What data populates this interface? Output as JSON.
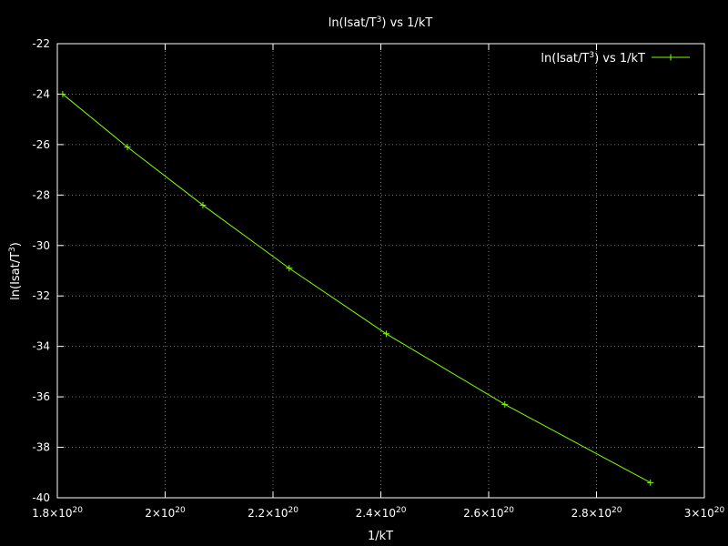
{
  "chart_data": {
    "type": "line",
    "title": {
      "base": "ln(Isat/T",
      "sup": "3",
      "tail": ") vs 1/kT"
    },
    "xlabel": "1/kT",
    "ylabel": {
      "base": "ln(Isat/T",
      "sup": "3",
      "tail": ")"
    },
    "xlim": [
      1.8e+20,
      3e+20
    ],
    "ylim": [
      -40,
      -22
    ],
    "x_ticks": [
      {
        "value": 1.8e+20,
        "mant": "1.8",
        "exp": "20"
      },
      {
        "value": 2e+20,
        "mant": "2",
        "exp": "20"
      },
      {
        "value": 2.2e+20,
        "mant": "2.2",
        "exp": "20"
      },
      {
        "value": 2.4e+20,
        "mant": "2.4",
        "exp": "20"
      },
      {
        "value": 2.6e+20,
        "mant": "2.6",
        "exp": "20"
      },
      {
        "value": 2.8e+20,
        "mant": "2.8",
        "exp": "20"
      },
      {
        "value": 3e+20,
        "mant": "3",
        "exp": "20"
      }
    ],
    "y_ticks": [
      -22,
      -24,
      -26,
      -28,
      -30,
      -32,
      -34,
      -36,
      -38,
      -40
    ],
    "tick_times": "×10",
    "grid": true,
    "legend_position": "top-right",
    "series": [
      {
        "name": {
          "base": "ln(Isat/T",
          "sup": "3",
          "tail": ") vs 1/kT"
        },
        "color": "#80ff00",
        "marker": "plus",
        "x": [
          1.81e+20,
          1.93e+20,
          2.07e+20,
          2.23e+20,
          2.41e+20,
          2.63e+20,
          2.9e+20
        ],
        "y": [
          -24.0,
          -26.1,
          -28.4,
          -30.9,
          -33.5,
          -36.3,
          -39.4
        ]
      }
    ]
  }
}
